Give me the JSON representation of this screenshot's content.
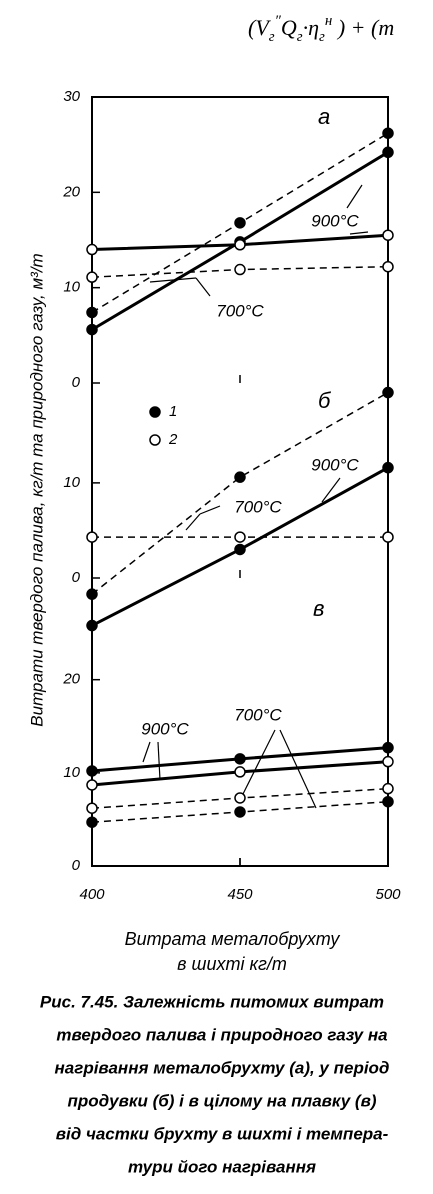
{
  "header": {
    "formula": [
      {
        "t": "(V"
      },
      {
        "t": "г",
        "sub": true
      },
      {
        "t": "″",
        "sup": true
      },
      {
        "t": "Q"
      },
      {
        "t": "г",
        "sub": true
      },
      {
        "t": "·η"
      },
      {
        "t": "г",
        "sub": true
      },
      {
        "t": "н",
        "sup": true
      },
      {
        "t": " ) + (m"
      }
    ]
  },
  "axes": {
    "ylabel": "Витрати твердого палива, кг/т та природного газу, м³/т",
    "xlabel": [
      "Витрата металобрухту",
      "в шихті  кг/т"
    ]
  },
  "chart_data": [
    {
      "type": "line",
      "panel_label": "а",
      "annotations": [
        "900°C",
        "700°C"
      ],
      "x": [
        400,
        450,
        500
      ],
      "xlim": [
        400,
        500
      ],
      "ylim": [
        0,
        30
      ],
      "yticks": [
        0,
        10,
        20,
        30
      ],
      "series": [
        {
          "color": "#000000",
          "marker": "filled",
          "line": "solid",
          "values": [
            5.6,
            14.8,
            24.2
          ]
        },
        {
          "color": "#000000",
          "marker": "open",
          "line": "solid",
          "values": [
            14.0,
            14.5,
            15.5
          ]
        },
        {
          "color": "#000000",
          "marker": "filled",
          "line": "dashed",
          "values": [
            7.4,
            16.8,
            26.2
          ]
        },
        {
          "color": "#000000",
          "marker": "open",
          "line": "dashed",
          "values": [
            11.1,
            11.9,
            12.2
          ]
        }
      ]
    },
    {
      "type": "line",
      "panel_label": "б",
      "annotations": [
        "900°C",
        "700°C"
      ],
      "legend": [
        {
          "label": "1",
          "marker": "filled"
        },
        {
          "label": "2",
          "marker": "open"
        }
      ],
      "x": [
        400,
        450,
        500
      ],
      "xlim": [
        400,
        500
      ],
      "ylim": [
        0,
        20.5
      ],
      "yticks": [
        0,
        10
      ],
      "series": [
        {
          "color": "#000000",
          "marker": "filled",
          "line": "solid",
          "values": [
            -5.0,
            3.0,
            11.6
          ]
        },
        {
          "color": "#000000",
          "marker": "filled",
          "line": "dashed",
          "values": [
            -1.7,
            10.6,
            19.5
          ]
        },
        {
          "color": "#000000",
          "marker": "open",
          "line": "dashed",
          "values": [
            4.3,
            4.3,
            4.3
          ]
        }
      ]
    },
    {
      "type": "line",
      "panel_label": "в",
      "annotations": [
        "900°C",
        "700°C"
      ],
      "x": [
        400,
        450,
        500
      ],
      "xlim": [
        400,
        500
      ],
      "xticks": [
        400,
        450,
        500
      ],
      "ylim": [
        0,
        30.7
      ],
      "yticks": [
        0,
        10,
        20
      ],
      "series": [
        {
          "color": "#000000",
          "marker": "filled",
          "line": "solid",
          "values": [
            10.2,
            11.5,
            12.7
          ]
        },
        {
          "color": "#000000",
          "marker": "open",
          "line": "solid",
          "values": [
            8.7,
            10.1,
            11.2
          ]
        },
        {
          "color": "#000000",
          "marker": "open",
          "line": "dashed",
          "values": [
            6.2,
            7.3,
            8.3
          ]
        },
        {
          "color": "#000000",
          "marker": "filled",
          "line": "dashed",
          "values": [
            4.7,
            5.8,
            6.9
          ]
        }
      ]
    }
  ],
  "caption": [
    "Рис. 7.45. Залежність питомих витрат",
    "твердого палива і природного газу на",
    "нагрівання металобрухту (а), у період",
    "продувки (б) і в цілому на плавку (в)",
    "від частки брухту в шихті і темпера-",
    "тури його нагрівання"
  ]
}
